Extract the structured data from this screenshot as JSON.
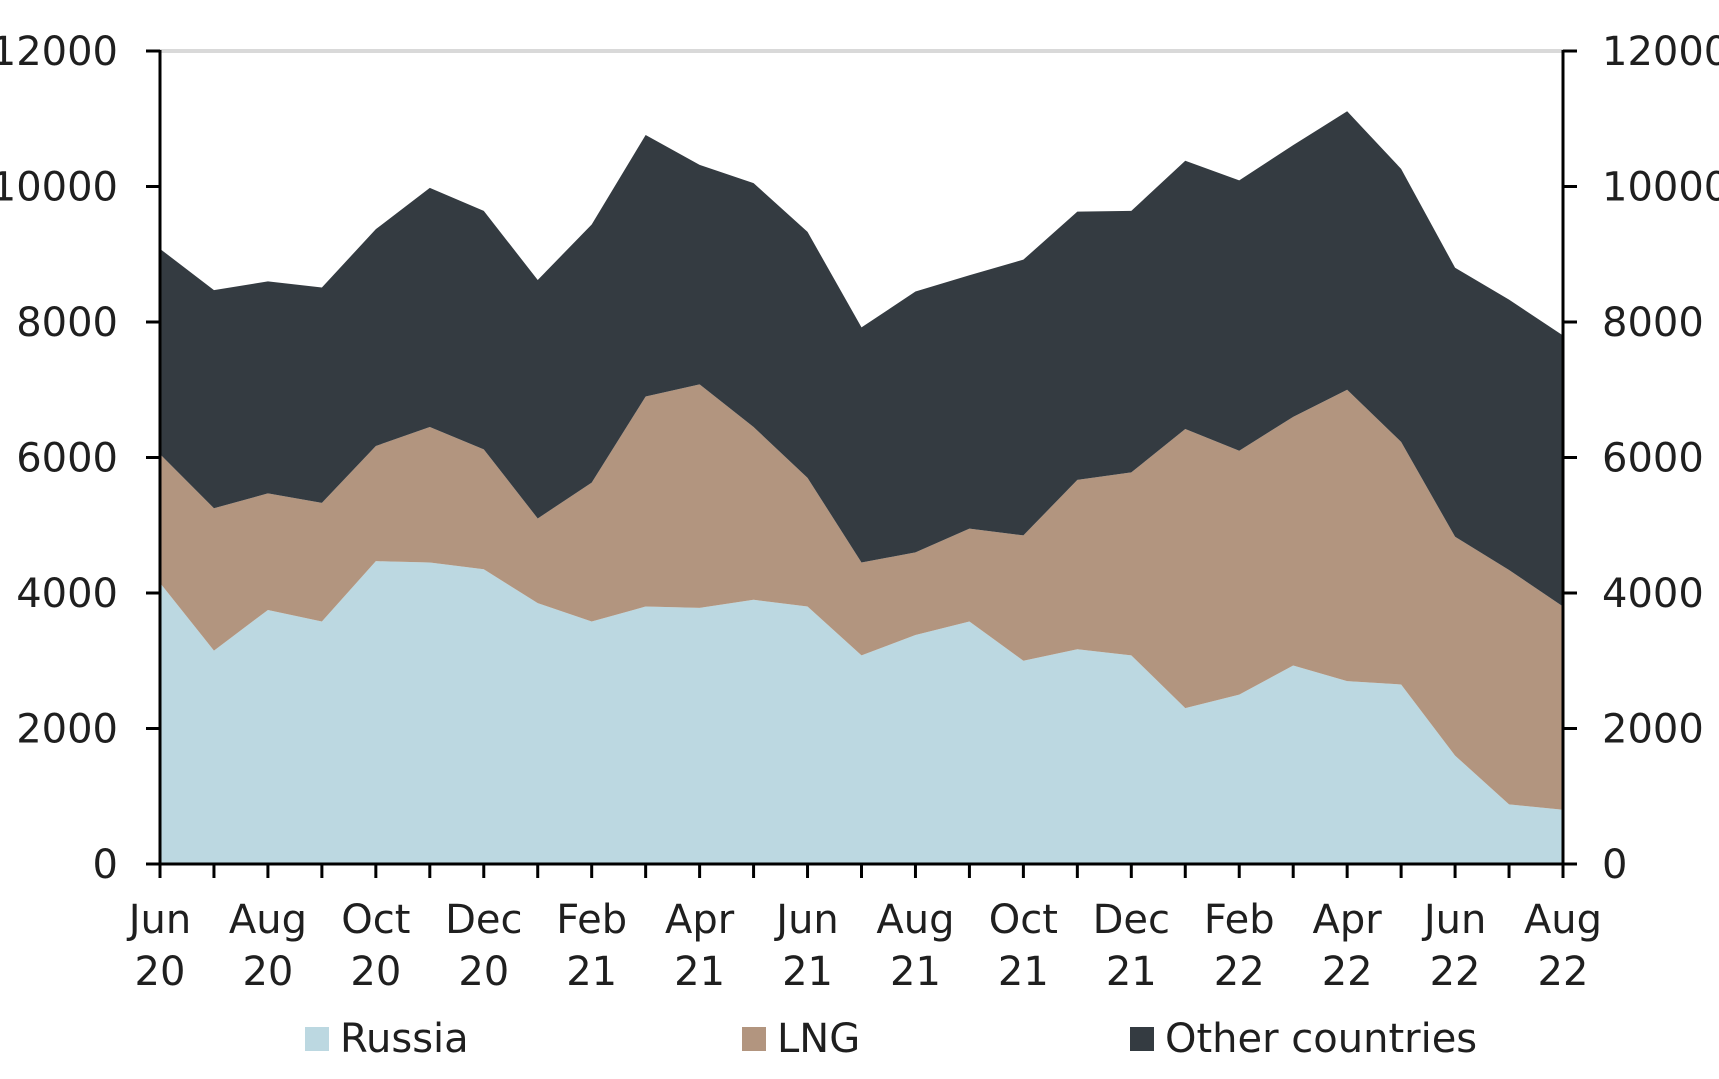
{
  "chart_data": {
    "type": "area",
    "stacked": true,
    "title": "",
    "xlabel": "",
    "ylabel": "",
    "ylim": [
      0,
      12000
    ],
    "yticks": [
      0,
      2000,
      4000,
      6000,
      8000,
      10000,
      12000
    ],
    "secondary_ylim": [
      0,
      12000
    ],
    "secondary_yticks": [
      0,
      2000,
      4000,
      6000,
      8000,
      10000,
      12000
    ],
    "grid": false,
    "legend_position": "bottom",
    "x": [
      "Jun 20",
      "Jul 20",
      "Aug 20",
      "Sep 20",
      "Oct 20",
      "Nov 20",
      "Dec 20",
      "Jan 21",
      "Feb 21",
      "Mar 21",
      "Apr 21",
      "May 21",
      "Jun 21",
      "Jul 21",
      "Aug 21",
      "Sep 21",
      "Oct 21",
      "Nov 21",
      "Dec 21",
      "Jan 22",
      "Feb 22",
      "Mar 22",
      "Apr 22",
      "May 22",
      "Jun 22",
      "Jul 22",
      "Aug 22"
    ],
    "xtick_labels": [
      {
        "index": 0,
        "line1": "Jun",
        "line2": "20"
      },
      {
        "index": 2,
        "line1": "Aug",
        "line2": "20"
      },
      {
        "index": 4,
        "line1": "Oct",
        "line2": "20"
      },
      {
        "index": 6,
        "line1": "Dec",
        "line2": "20"
      },
      {
        "index": 8,
        "line1": "Feb",
        "line2": "21"
      },
      {
        "index": 10,
        "line1": "Apr",
        "line2": "21"
      },
      {
        "index": 12,
        "line1": "Jun",
        "line2": "21"
      },
      {
        "index": 14,
        "line1": "Aug",
        "line2": "21"
      },
      {
        "index": 16,
        "line1": "Oct",
        "line2": "21"
      },
      {
        "index": 18,
        "line1": "Dec",
        "line2": "21"
      },
      {
        "index": 20,
        "line1": "Feb",
        "line2": "22"
      },
      {
        "index": 22,
        "line1": "Apr",
        "line2": "22"
      },
      {
        "index": 24,
        "line1": "Jun",
        "line2": "22"
      },
      {
        "index": 26,
        "line1": "Aug",
        "line2": "22"
      }
    ],
    "series": [
      {
        "name": "Russia",
        "color": "#bcd8e1",
        "values": [
          4150,
          3150,
          3750,
          3580,
          4470,
          4450,
          4350,
          3850,
          3580,
          3800,
          3780,
          3900,
          3800,
          3080,
          3380,
          3580,
          3000,
          3170,
          3080,
          2300,
          2500,
          2930,
          2700,
          2650,
          1600,
          880,
          800
        ]
      },
      {
        "name": "LNG",
        "color": "#b2957f",
        "values": [
          1900,
          2100,
          1720,
          1750,
          1700,
          2000,
          1770,
          1250,
          2050,
          3100,
          3300,
          2550,
          1900,
          1370,
          1220,
          1370,
          1850,
          2500,
          2700,
          4120,
          3600,
          3670,
          4300,
          3580,
          3230,
          3460,
          3000
        ]
      },
      {
        "name": "Other countries",
        "color": "#343b41",
        "values": [
          3030,
          3220,
          3130,
          3180,
          3200,
          3530,
          3520,
          3520,
          3810,
          3860,
          3240,
          3600,
          3630,
          3470,
          3850,
          3740,
          4070,
          3960,
          3860,
          3960,
          3990,
          4010,
          4110,
          4030,
          3970,
          3990,
          4000
        ]
      }
    ]
  }
}
